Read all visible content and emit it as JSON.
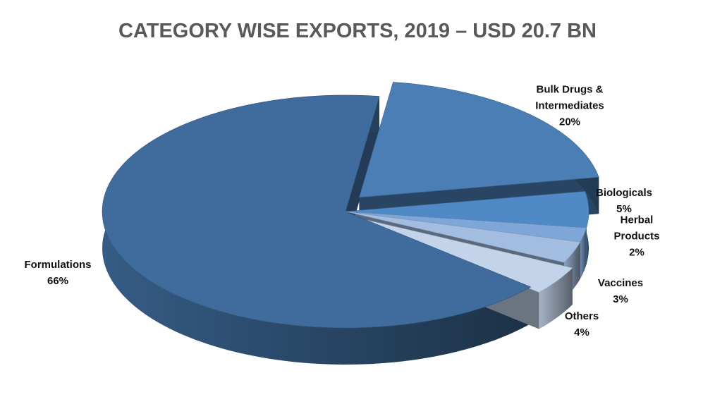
{
  "chart_data": {
    "type": "pie",
    "title": "CATEGORY WISE EXPORTS, 2019 – USD 20.7 BN",
    "categories": [
      "Bulk Drugs & Intermediates",
      "Biologicals",
      "Herbal Products",
      "Vaccines",
      "Others",
      "Formulations"
    ],
    "values": [
      20,
      5,
      2,
      3,
      4,
      66
    ],
    "value_labels": [
      "20%",
      "5%",
      "2%",
      "3%",
      "4%",
      "66%"
    ],
    "colors": [
      "#4a7eb4",
      "#4f89c6",
      "#7ea6d8",
      "#a3bde1",
      "#c3d4ea",
      "#3f6c9c"
    ]
  }
}
